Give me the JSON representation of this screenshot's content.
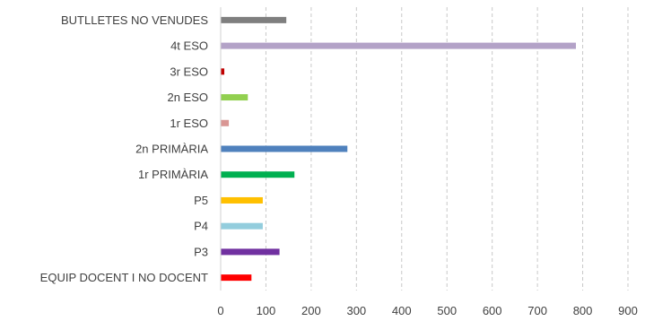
{
  "chart_data": {
    "type": "bar",
    "orientation": "horizontal",
    "categories": [
      "BUTLLETES NO VENUDES",
      "4t ESO",
      "3r ESO",
      "2n ESO",
      "1r ESO",
      "2n PRIMÀRIA",
      "1r PRIMÀRIA",
      "P5",
      "P4",
      "P3",
      "EQUIP DOCENT I NO DOCENT"
    ],
    "values": [
      145,
      785,
      8,
      60,
      18,
      280,
      163,
      93,
      93,
      130,
      68
    ],
    "bar_colors": [
      "#7f7f7f",
      "#b3a2c7",
      "#c00000",
      "#92d050",
      "#d99694",
      "#4f81bd",
      "#00b050",
      "#ffc000",
      "#93cddd",
      "#7030a0",
      "#ff0000"
    ],
    "xlim": [
      0,
      900
    ],
    "xticks": [
      0,
      100,
      200,
      300,
      400,
      500,
      600,
      700,
      800,
      900
    ],
    "xtick_labels": [
      "0",
      "100",
      "200",
      "300",
      "400",
      "500",
      "600",
      "700",
      "800",
      "900"
    ],
    "title": "",
    "xlabel": "",
    "ylabel": "",
    "grid": "vertical-dashed",
    "legend": "none"
  }
}
